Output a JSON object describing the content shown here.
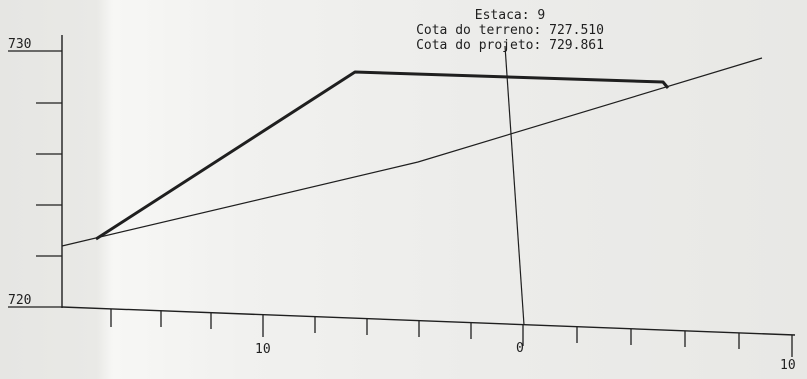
{
  "annotation": {
    "station": "Estaca: 9",
    "ground_elevation": "Cota do terreno: 727.510",
    "design_elevation": "Cota do projeto: 729.861"
  },
  "y_axis": {
    "top_label": "730",
    "bottom_label": "720",
    "range": [
      720,
      730
    ]
  },
  "x_axis": {
    "labels": [
      "10",
      "0",
      "10"
    ]
  },
  "colors": {
    "ink": "#1f1f1f"
  }
}
